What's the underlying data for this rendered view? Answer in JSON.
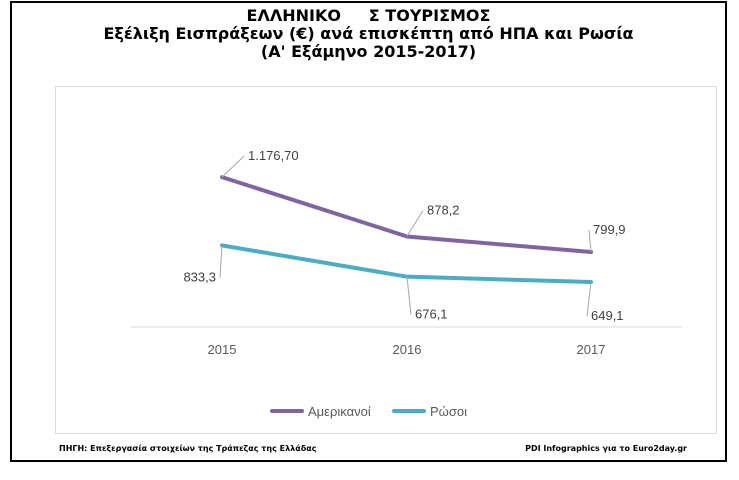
{
  "title": {
    "line1": "ΕΛΛΗΝΙΚΟ     Σ ΤΟΥΡΙΣΜΟΣ",
    "line2": "Εξέλιξη Εισπράξεων (€) ανά επισκέπτη από ΗΠΑ και Ρωσία",
    "line3": "(Α' Εξάμηνο 2015-2017)"
  },
  "footer": {
    "source": "ΠΗΓΗ: Επεξεργασία στοιχείων της Τράπεζας της Ελλάδας",
    "credit": "PDI Infographics για το Euro2day.gr"
  },
  "chart_data": {
    "type": "line",
    "title": "Εξέλιξη Εισπράξεων (€) ανά επισκέπτη από ΗΠΑ και Ρωσία",
    "categories": [
      "2015",
      "2016",
      "2017"
    ],
    "series": [
      {
        "name": "Αμερικανοί",
        "values": [
          1176.7,
          878.2,
          799.9
        ],
        "labels": [
          "1.176,70",
          "878,2",
          "799,9"
        ],
        "color": "#8064a2"
      },
      {
        "name": "Ρώσοι",
        "values": [
          833.3,
          676.1,
          649.1
        ],
        "labels": [
          "833,3",
          "676,1",
          "649,1"
        ],
        "color": "#4bacc6"
      }
    ],
    "ylim": [
      -100,
      1650
    ],
    "grid": false,
    "legend_position": "bottom",
    "xlabel": "",
    "ylabel": ""
  }
}
